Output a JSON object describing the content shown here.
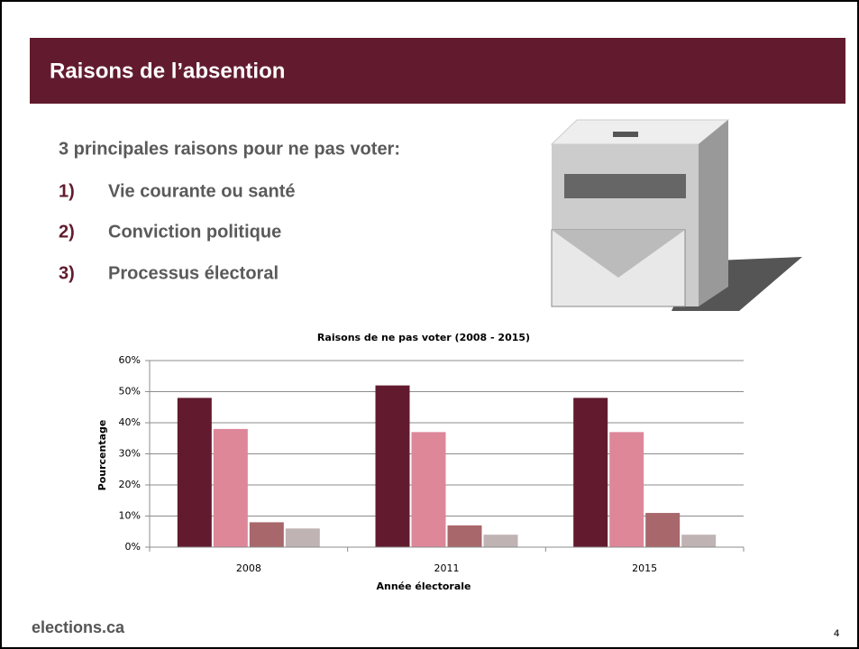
{
  "slide": {
    "title": "Raisons de l’absention",
    "intro": "3 principales raisons pour ne pas voter:",
    "items": [
      {
        "number": "1)",
        "text": "Vie courante ou santé"
      },
      {
        "number": "2)",
        "text": "Conviction politique"
      },
      {
        "number": "3)",
        "text": "Processus électoral"
      }
    ],
    "footer": "elections.ca",
    "page_number": "4"
  },
  "chart_data": {
    "type": "bar",
    "title": "Raisons de ne pas voter (2008 - 2015)",
    "x_label": "Année électorale",
    "y_label": "Pourcentage",
    "categories": [
      "2008",
      "2011",
      "2015"
    ],
    "series": [
      {
        "color": "#621b2e",
        "values": [
          48,
          52,
          48
        ]
      },
      {
        "color": "#dd8799",
        "values": [
          38,
          37,
          37
        ]
      },
      {
        "color": "#a8676b",
        "values": [
          8,
          7,
          11
        ]
      },
      {
        "color": "#c0b3b3",
        "values": [
          6,
          4,
          4
        ]
      }
    ],
    "ylim": [
      0,
      60
    ],
    "yticks": [
      {
        "value": 0,
        "label": "0%"
      },
      {
        "value": 10,
        "label": "10%"
      },
      {
        "value": 20,
        "label": "20%"
      },
      {
        "value": 30,
        "label": "30%"
      },
      {
        "value": 40,
        "label": "40%"
      },
      {
        "value": 50,
        "label": "50%"
      },
      {
        "value": 60,
        "label": "60%"
      }
    ],
    "grid": true
  }
}
